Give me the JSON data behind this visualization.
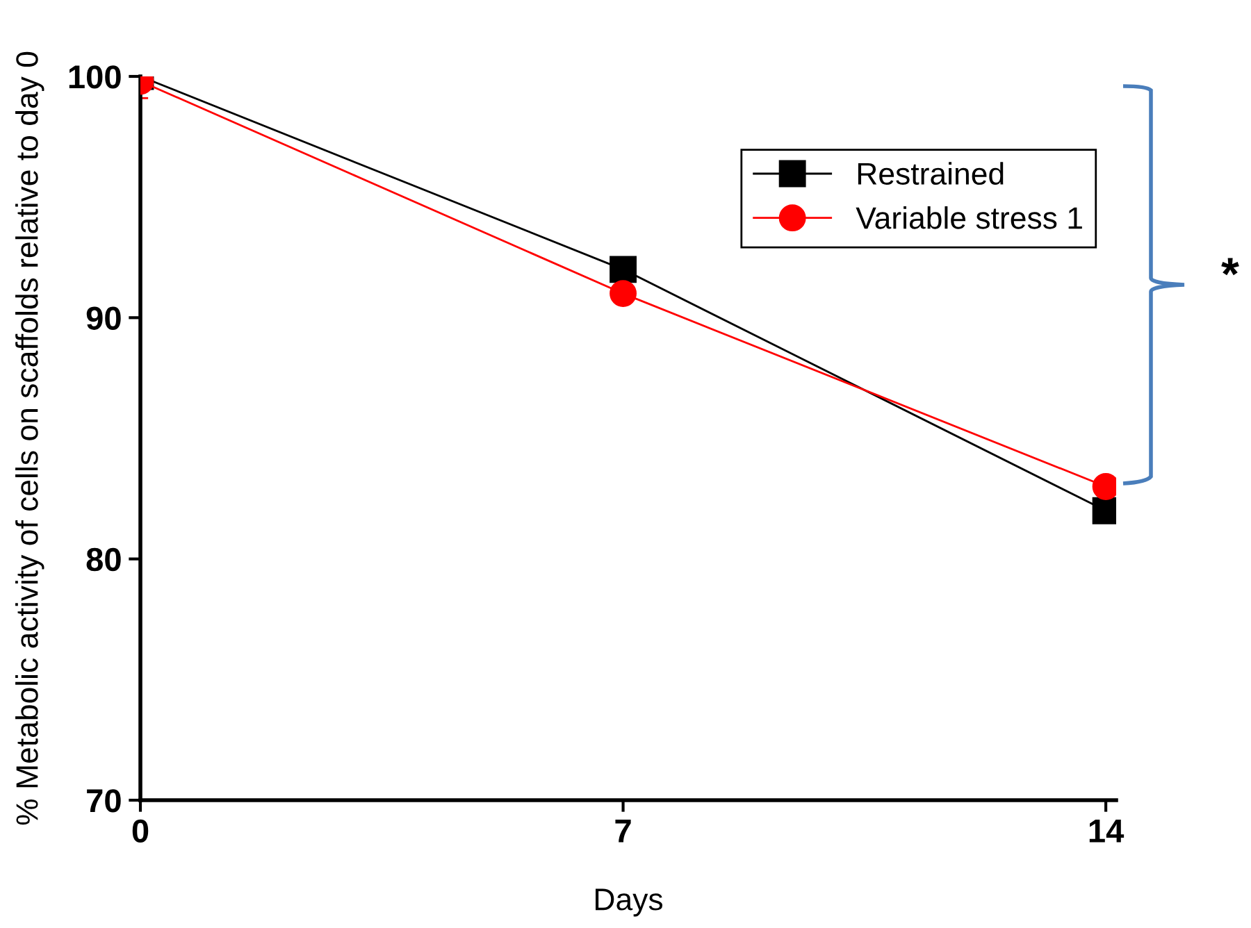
{
  "chart_data": {
    "type": "line",
    "xlabel": "Days",
    "ylabel": "% Metabolic activity of cells on scaffolds relative to day 0",
    "x": [
      0,
      7,
      14
    ],
    "xlim": [
      0,
      14.15
    ],
    "xticks": [
      0,
      7,
      14
    ],
    "ylim": [
      70,
      100
    ],
    "yticks": [
      70,
      80,
      90,
      100
    ],
    "series": [
      {
        "name": "Restrained",
        "color": "#000000",
        "marker": "square",
        "values": [
          100,
          92,
          82
        ],
        "errors": [
          null,
          0.4,
          null
        ]
      },
      {
        "name": "Variable stress 1",
        "color": "#ff0000",
        "marker": "circle",
        "values": [
          99.8,
          91,
          83
        ],
        "errors": [
          0.7,
          null,
          0.4
        ]
      }
    ],
    "legend": "top right",
    "grid": false,
    "annotations": [
      "*"
    ]
  }
}
